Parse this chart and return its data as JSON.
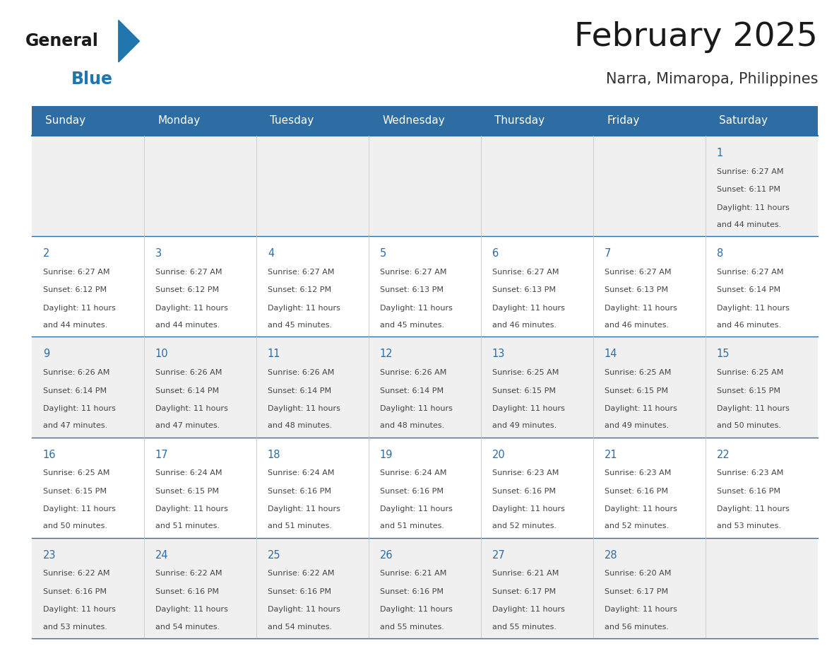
{
  "title": "February 2025",
  "subtitle": "Narra, Mimaropa, Philippines",
  "days_of_week": [
    "Sunday",
    "Monday",
    "Tuesday",
    "Wednesday",
    "Thursday",
    "Friday",
    "Saturday"
  ],
  "header_bg": "#2E6DA4",
  "header_text": "#FFFFFF",
  "cell_bg_odd": "#F0F0F0",
  "cell_bg_even": "#FFFFFF",
  "separator_color": "#2E6DA4",
  "title_color": "#1a1a1a",
  "subtitle_color": "#333333",
  "day_num_color": "#2E6DA4",
  "cell_text_color": "#444444",
  "logo_text_color": "#1a1a1a",
  "logo_blue_color": "#2176AE",
  "calendar_data": [
    [
      null,
      null,
      null,
      null,
      null,
      null,
      {
        "day": 1,
        "sunrise": "6:27 AM",
        "sunset": "6:11 PM",
        "daylight": "11 hours and 44 minutes."
      }
    ],
    [
      {
        "day": 2,
        "sunrise": "6:27 AM",
        "sunset": "6:12 PM",
        "daylight": "11 hours and 44 minutes."
      },
      {
        "day": 3,
        "sunrise": "6:27 AM",
        "sunset": "6:12 PM",
        "daylight": "11 hours and 44 minutes."
      },
      {
        "day": 4,
        "sunrise": "6:27 AM",
        "sunset": "6:12 PM",
        "daylight": "11 hours and 45 minutes."
      },
      {
        "day": 5,
        "sunrise": "6:27 AM",
        "sunset": "6:13 PM",
        "daylight": "11 hours and 45 minutes."
      },
      {
        "day": 6,
        "sunrise": "6:27 AM",
        "sunset": "6:13 PM",
        "daylight": "11 hours and 46 minutes."
      },
      {
        "day": 7,
        "sunrise": "6:27 AM",
        "sunset": "6:13 PM",
        "daylight": "11 hours and 46 minutes."
      },
      {
        "day": 8,
        "sunrise": "6:27 AM",
        "sunset": "6:14 PM",
        "daylight": "11 hours and 46 minutes."
      }
    ],
    [
      {
        "day": 9,
        "sunrise": "6:26 AM",
        "sunset": "6:14 PM",
        "daylight": "11 hours and 47 minutes."
      },
      {
        "day": 10,
        "sunrise": "6:26 AM",
        "sunset": "6:14 PM",
        "daylight": "11 hours and 47 minutes."
      },
      {
        "day": 11,
        "sunrise": "6:26 AM",
        "sunset": "6:14 PM",
        "daylight": "11 hours and 48 minutes."
      },
      {
        "day": 12,
        "sunrise": "6:26 AM",
        "sunset": "6:14 PM",
        "daylight": "11 hours and 48 minutes."
      },
      {
        "day": 13,
        "sunrise": "6:25 AM",
        "sunset": "6:15 PM",
        "daylight": "11 hours and 49 minutes."
      },
      {
        "day": 14,
        "sunrise": "6:25 AM",
        "sunset": "6:15 PM",
        "daylight": "11 hours and 49 minutes."
      },
      {
        "day": 15,
        "sunrise": "6:25 AM",
        "sunset": "6:15 PM",
        "daylight": "11 hours and 50 minutes."
      }
    ],
    [
      {
        "day": 16,
        "sunrise": "6:25 AM",
        "sunset": "6:15 PM",
        "daylight": "11 hours and 50 minutes."
      },
      {
        "day": 17,
        "sunrise": "6:24 AM",
        "sunset": "6:15 PM",
        "daylight": "11 hours and 51 minutes."
      },
      {
        "day": 18,
        "sunrise": "6:24 AM",
        "sunset": "6:16 PM",
        "daylight": "11 hours and 51 minutes."
      },
      {
        "day": 19,
        "sunrise": "6:24 AM",
        "sunset": "6:16 PM",
        "daylight": "11 hours and 51 minutes."
      },
      {
        "day": 20,
        "sunrise": "6:23 AM",
        "sunset": "6:16 PM",
        "daylight": "11 hours and 52 minutes."
      },
      {
        "day": 21,
        "sunrise": "6:23 AM",
        "sunset": "6:16 PM",
        "daylight": "11 hours and 52 minutes."
      },
      {
        "day": 22,
        "sunrise": "6:23 AM",
        "sunset": "6:16 PM",
        "daylight": "11 hours and 53 minutes."
      }
    ],
    [
      {
        "day": 23,
        "sunrise": "6:22 AM",
        "sunset": "6:16 PM",
        "daylight": "11 hours and 53 minutes."
      },
      {
        "day": 24,
        "sunrise": "6:22 AM",
        "sunset": "6:16 PM",
        "daylight": "11 hours and 54 minutes."
      },
      {
        "day": 25,
        "sunrise": "6:22 AM",
        "sunset": "6:16 PM",
        "daylight": "11 hours and 54 minutes."
      },
      {
        "day": 26,
        "sunrise": "6:21 AM",
        "sunset": "6:16 PM",
        "daylight": "11 hours and 55 minutes."
      },
      {
        "day": 27,
        "sunrise": "6:21 AM",
        "sunset": "6:17 PM",
        "daylight": "11 hours and 55 minutes."
      },
      {
        "day": 28,
        "sunrise": "6:20 AM",
        "sunset": "6:17 PM",
        "daylight": "11 hours and 56 minutes."
      },
      null
    ]
  ]
}
